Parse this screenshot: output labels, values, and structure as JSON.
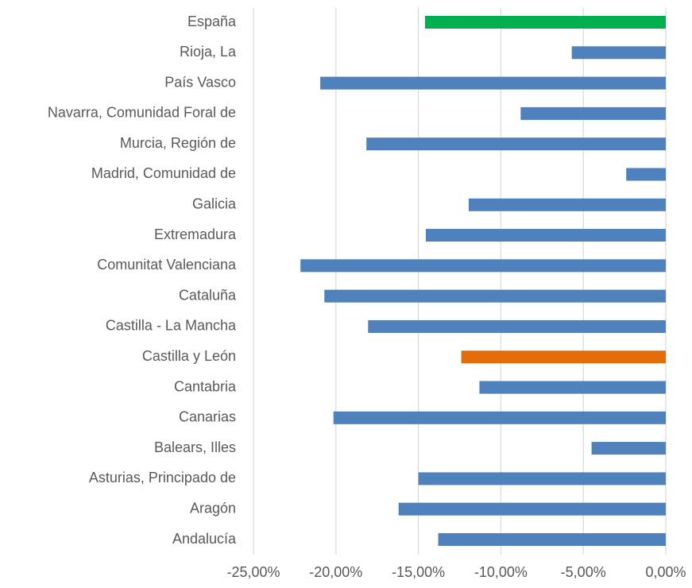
{
  "chart_data": {
    "type": "hbar",
    "categories": [
      "España",
      "Rioja, La",
      "País Vasco",
      "Navarra, Comunidad Foral de",
      "Murcia, Región de",
      "Madrid, Comunidad de",
      "Galicia",
      "Extremadura",
      "Comunitat Valenciana",
      "Cataluña",
      "Castilla - La Mancha",
      "Castilla y León",
      "Cantabria",
      "Canarias",
      "Balears, Illes",
      "Asturias, Principado de",
      "Aragón",
      "Andalucía"
    ],
    "values": [
      -14.6,
      -5.7,
      -20.95,
      -8.8,
      -18.15,
      -2.4,
      -11.95,
      -14.55,
      -22.15,
      -20.7,
      -18.05,
      -12.4,
      -11.3,
      -20.15,
      -4.5,
      -15.0,
      -16.2,
      -13.8
    ],
    "colors": [
      "#00b050",
      "#4f81bd",
      "#4f81bd",
      "#4f81bd",
      "#4f81bd",
      "#4f81bd",
      "#4f81bd",
      "#4f81bd",
      "#4f81bd",
      "#4f81bd",
      "#4f81bd",
      "#e46c0a",
      "#4f81bd",
      "#4f81bd",
      "#4f81bd",
      "#4f81bd",
      "#4f81bd",
      "#4f81bd"
    ],
    "xlim": [
      -25,
      0
    ],
    "xticks": [
      {
        "value": -25,
        "label": "-25,00%"
      },
      {
        "value": -20,
        "label": "-20,00%"
      },
      {
        "value": -15,
        "label": "-15,00%"
      },
      {
        "value": -10,
        "label": "-10,00%"
      },
      {
        "value": -5,
        "label": "-5,00%"
      },
      {
        "value": 0,
        "label": "0,00%"
      }
    ],
    "grid": true
  }
}
